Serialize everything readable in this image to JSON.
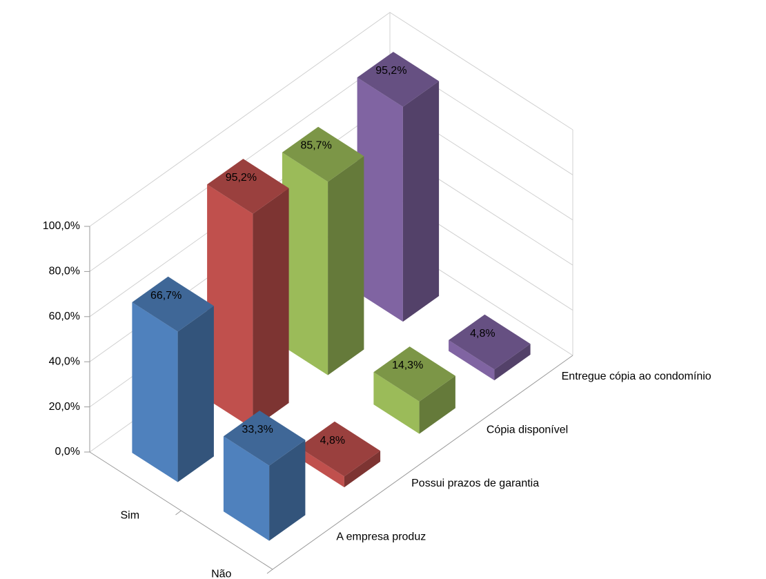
{
  "chart_data": {
    "type": "bar3d",
    "categories": [
      "Sim",
      "Não"
    ],
    "series": [
      {
        "name": "A empresa produz",
        "color": "#4f81bd",
        "values": [
          66.7,
          33.3
        ],
        "value_labels": [
          "66,7%",
          "33,3%"
        ]
      },
      {
        "name": "Possui prazos de garantia",
        "color": "#c0504d",
        "values": [
          95.2,
          4.8
        ],
        "value_labels": [
          "95,2%",
          "4,8%"
        ]
      },
      {
        "name": "Cópia disponível",
        "color": "#9bbb59",
        "values": [
          85.7,
          14.3
        ],
        "value_labels": [
          "85,7%",
          "14,3%"
        ]
      },
      {
        "name": "Entregue cópia ao condomínio",
        "color": "#8064a2",
        "values": [
          95.2,
          4.8
        ],
        "value_labels": [
          "95,2%",
          "4,8%"
        ]
      }
    ],
    "ylim": [
      0,
      100
    ],
    "yticks": [
      {
        "value": 0,
        "label": "0,0%"
      },
      {
        "value": 20,
        "label": "20,0%"
      },
      {
        "value": 40,
        "label": "40,0%"
      },
      {
        "value": 60,
        "label": "60,0%"
      },
      {
        "value": 80,
        "label": "80,0%"
      },
      {
        "value": 100,
        "label": "100,0%"
      }
    ],
    "grid": true
  }
}
